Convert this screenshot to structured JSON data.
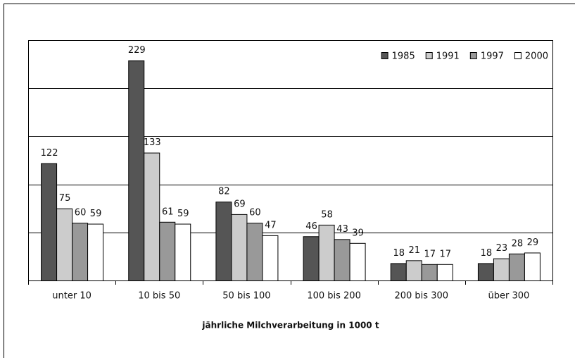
{
  "chart_data": {
    "type": "bar",
    "x_label": "jährliche Milchverarbeitung in 1000 t",
    "categories": [
      "unter 10",
      "10 bis 50",
      "50 bis 100",
      "100 bis 200",
      "200 bis 300",
      "über 300"
    ],
    "series": [
      {
        "name": "1985",
        "color": "#555555",
        "values": [
          122,
          229,
          82,
          46,
          18,
          18
        ]
      },
      {
        "name": "1991",
        "color": "#cccccc",
        "values": [
          75,
          133,
          69,
          58,
          21,
          23
        ]
      },
      {
        "name": "1997",
        "color": "#999999",
        "values": [
          60,
          61,
          60,
          43,
          17,
          28
        ]
      },
      {
        "name": "2000",
        "color": "#ffffff",
        "values": [
          59,
          59,
          47,
          39,
          17,
          29
        ]
      }
    ],
    "ylim": [
      0,
      250
    ],
    "yticks": [
      0,
      50,
      100,
      150,
      200,
      250
    ],
    "grid": true,
    "legend": "top-right"
  }
}
